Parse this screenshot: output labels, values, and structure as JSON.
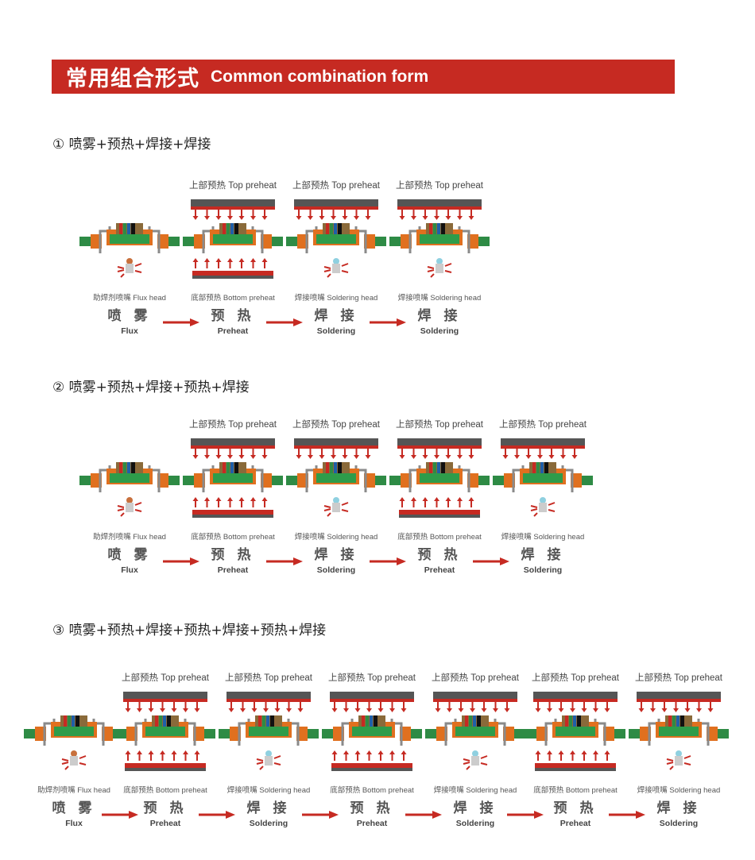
{
  "banner": {
    "title_cn": "常用组合形式",
    "title_en": "Common combination form",
    "color": "#c62a22"
  },
  "labels": {
    "top_preheat": "上部预热  Top preheat",
    "flux_head": "助焊剂喷嘴  Flux head",
    "bottom_preheat": "底部预热  Bottom preheat",
    "soldering_head": "焊接喷嘴  Soldering head",
    "flux_cn": "喷 雾",
    "flux_en": "Flux",
    "preheat_cn": "预 热",
    "preheat_en": "Preheat",
    "soldering_cn": "焊 接",
    "soldering_en": "Soldering"
  },
  "sections": [
    {
      "title": "① 喷雾+预热+焊接+焊接",
      "stages": [
        "flux",
        "preheat",
        "soldering",
        "soldering"
      ]
    },
    {
      "title": "② 喷雾+预热+焊接+预热+焊接",
      "stages": [
        "flux",
        "preheat",
        "soldering",
        "preheat",
        "soldering"
      ]
    },
    {
      "title": "③ 喷雾+预热+焊接+预热+焊接+预热+焊接",
      "stages": [
        "flux",
        "preheat",
        "soldering",
        "preheat",
        "soldering",
        "preheat",
        "soldering"
      ]
    }
  ]
}
